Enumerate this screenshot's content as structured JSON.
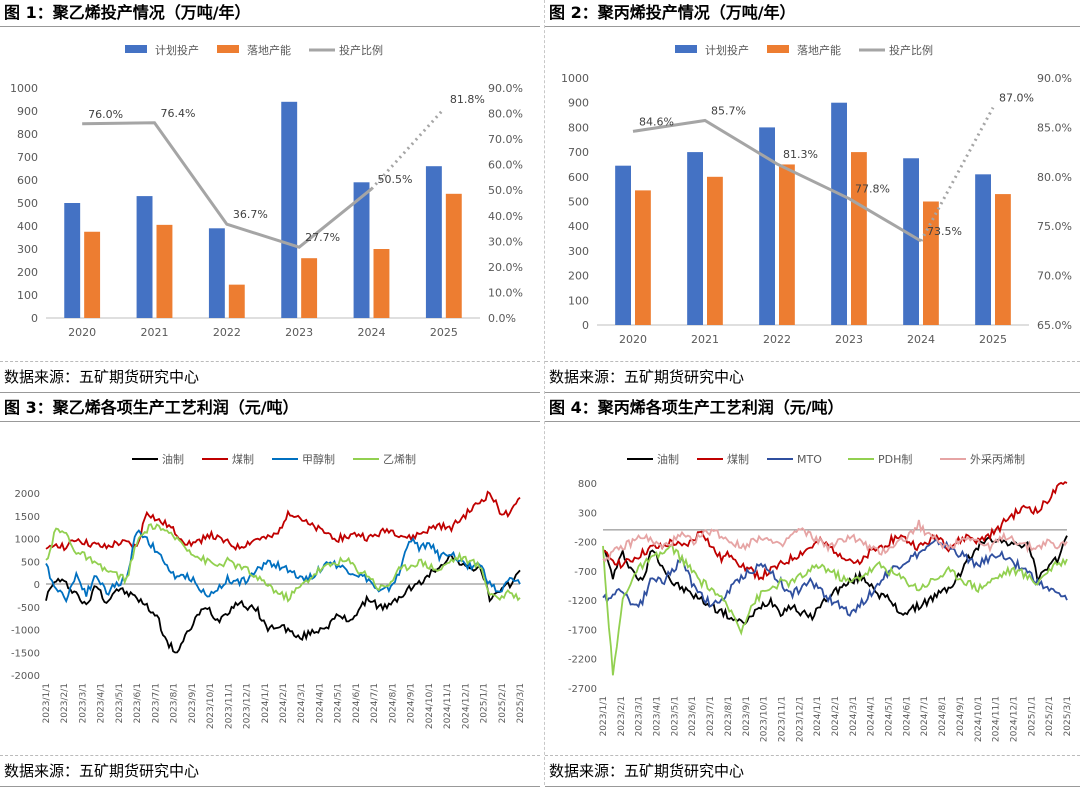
{
  "panels": [
    {
      "title": "图 1：聚乙烯投产情况（万吨/年）",
      "source": "数据来源：五矿期货研究中心"
    },
    {
      "title": "图 2：聚丙烯投产情况（万吨/年）",
      "source": "数据来源：五矿期货研究中心"
    },
    {
      "title": "图 3：聚乙烯各项生产工艺利润（元/吨）",
      "source": "数据来源：五矿期货研究中心"
    },
    {
      "title": "图 4：聚丙烯各项生产工艺利润（元/吨）",
      "source": "数据来源：五矿期货研究中心"
    }
  ],
  "colors": {
    "blue": "#4472C4",
    "orange": "#ED7D31",
    "gray": "#A5A5A5",
    "black": "#000000",
    "red": "#C00000",
    "mblue": "#0070C0",
    "green": "#92D050",
    "dblue": "#2F4F9F",
    "pink": "#E6A4A4"
  },
  "chart_data": [
    {
      "type": "bar",
      "categories": [
        "2020",
        "2021",
        "2022",
        "2023",
        "2024",
        "2025"
      ],
      "series": [
        {
          "name": "计划投产",
          "values": [
            500,
            530,
            390,
            940,
            590,
            660
          ]
        },
        {
          "name": "落地产能",
          "values": [
            375,
            405,
            145,
            260,
            300,
            540
          ]
        }
      ],
      "line": {
        "name": "投产比例",
        "values": [
          76.0,
          76.4,
          36.7,
          27.7,
          50.5,
          81.8
        ],
        "labels": [
          "76.0%",
          "76.4%",
          "36.7%",
          "27.7%",
          "50.5%",
          "81.8%"
        ],
        "dotted_from_index": 4
      },
      "ylim": [
        0,
        1000
      ],
      "yticks": [
        "0",
        "100",
        "200",
        "300",
        "400",
        "500",
        "600",
        "700",
        "800",
        "900",
        "1000"
      ],
      "y2lim": [
        0,
        90
      ],
      "y2ticks": [
        "0.0%",
        "10.0%",
        "20.0%",
        "30.0%",
        "40.0%",
        "50.0%",
        "60.0%",
        "70.0%",
        "80.0%",
        "90.0%"
      ],
      "legend": "top"
    },
    {
      "type": "bar",
      "categories": [
        "2020",
        "2021",
        "2022",
        "2023",
        "2024",
        "2025"
      ],
      "series": [
        {
          "name": "计划投产",
          "values": [
            645,
            700,
            800,
            900,
            675,
            610
          ]
        },
        {
          "name": "落地产能",
          "values": [
            545,
            600,
            650,
            700,
            500,
            530
          ]
        }
      ],
      "line": {
        "name": "投产比例",
        "values": [
          84.6,
          85.7,
          81.3,
          77.8,
          73.5,
          87.0
        ],
        "labels": [
          "84.6%",
          "85.7%",
          "81.3%",
          "77.8%",
          "73.5%",
          "87.0%"
        ],
        "dotted_from_index": 4
      },
      "ylim": [
        0,
        1000
      ],
      "yticks": [
        "0",
        "100",
        "200",
        "300",
        "400",
        "500",
        "600",
        "700",
        "800",
        "900",
        "1000"
      ],
      "y2lim": [
        65,
        90
      ],
      "y2ticks": [
        "65.0%",
        "70.0%",
        "75.0%",
        "80.0%",
        "85.0%",
        "90.0%"
      ],
      "legend": "top"
    },
    {
      "type": "line",
      "xticks": [
        "2023/1/1",
        "2023/2/1",
        "2023/3/1",
        "2023/4/1",
        "2023/5/1",
        "2023/6/1",
        "2023/7/1",
        "2023/8/1",
        "2023/9/1",
        "2023/10/1",
        "2023/11/1",
        "2023/12/1",
        "2024/1/1",
        "2024/2/1",
        "2024/3/1",
        "2024/4/1",
        "2024/5/1",
        "2024/6/1",
        "2024/7/1",
        "2024/8/1",
        "2024/9/1",
        "2024/10/1",
        "2024/11/1",
        "2024/12/1",
        "2025/1/1",
        "2025/2/1",
        "2025/3/1"
      ],
      "ylim": [
        -2000,
        2000
      ],
      "yticks": [
        "-2000",
        "-1500",
        "-1000",
        "-500",
        "0",
        "500",
        "1000",
        "1500",
        "2000"
      ],
      "series": [
        {
          "name": "油制",
          "values": [
            -300,
            100,
            0,
            -200,
            -500,
            0,
            -400,
            -100,
            -200,
            -300,
            -500,
            -700,
            -1300,
            -1500,
            -1100,
            -700,
            -500,
            -800,
            -600,
            -400,
            -500,
            -600,
            -1000,
            -900,
            -1000,
            -1200,
            -1100,
            -1000,
            -900,
            -700,
            -800,
            -600,
            -300,
            -500,
            -500,
            -300,
            -100,
            0,
            200,
            400,
            600,
            500,
            300,
            400,
            -300,
            -200,
            0,
            300
          ]
        },
        {
          "name": "煤制",
          "values": [
            700,
            900,
            800,
            1000,
            900,
            850,
            800,
            900,
            900,
            800,
            1600,
            1400,
            1300,
            1100,
            900,
            900,
            1100,
            1000,
            900,
            800,
            900,
            1000,
            1000,
            1100,
            1600,
            1500,
            1300,
            1200,
            1100,
            1000,
            1050,
            1100,
            1000,
            1100,
            1200,
            1100,
            1000,
            1100,
            1200,
            1300,
            1200,
            1400,
            1600,
            1800,
            2000,
            1600,
            1500,
            1900
          ]
        },
        {
          "name": "甲醇制",
          "values": [
            400,
            -100,
            -300,
            200,
            -200,
            200,
            -200,
            0,
            100,
            1200,
            1000,
            700,
            400,
            100,
            200,
            0,
            -300,
            -100,
            100,
            50,
            100,
            300,
            500,
            400,
            300,
            200,
            100,
            300,
            500,
            400,
            300,
            200,
            100,
            -200,
            -100,
            200,
            1000,
            800,
            900,
            600,
            700,
            500,
            400,
            450,
            0,
            -200,
            100,
            0
          ]
        },
        {
          "name": "乙烯制",
          "values": [
            500,
            1200,
            1100,
            700,
            600,
            400,
            300,
            200,
            100,
            900,
            1200,
            1300,
            1100,
            1000,
            800,
            600,
            500,
            400,
            500,
            400,
            300,
            100,
            0,
            -200,
            -300,
            -100,
            100,
            300,
            400,
            500,
            500,
            300,
            200,
            -100,
            0,
            300,
            400,
            500,
            400,
            300,
            500,
            600,
            500,
            400,
            -200,
            -300,
            -200,
            -300
          ]
        }
      ],
      "legend": "top"
    },
    {
      "type": "line",
      "xticks": [
        "2023/1/1",
        "2023/2/1",
        "2023/3/1",
        "2023/4/1",
        "2023/5/1",
        "2023/6/1",
        "2023/7/1",
        "2023/8/1",
        "2023/9/1",
        "2023/10/1",
        "2023/11/1",
        "2023/12/1",
        "2024/1/1",
        "2024/2/1",
        "2024/3/1",
        "2024/4/1",
        "2024/5/1",
        "2024/6/1",
        "2024/7/1",
        "2024/8/1",
        "2024/9/1",
        "2024/10/1",
        "2024/11/1",
        "2024/12/1",
        "2025/1/1",
        "2025/2/1",
        "2025/3/1"
      ],
      "ylim": [
        -2700,
        800
      ],
      "yticks": [
        "800",
        "300",
        "-200",
        "-700",
        "-1200",
        "-1700",
        "-2200",
        "-2700"
      ],
      "series": [
        {
          "name": "油制",
          "values": [
            -300,
            -800,
            -400,
            -700,
            -900,
            -300,
            -600,
            -900,
            -1000,
            -1100,
            -1200,
            -1300,
            -1400,
            -1500,
            -1600,
            -1500,
            -1300,
            -1200,
            -1400,
            -1300,
            -1400,
            -1500,
            -1300,
            -1100,
            -1000,
            -900,
            -800,
            -900,
            -1100,
            -1200,
            -1400,
            -1400,
            -1300,
            -1200,
            -1100,
            -1000,
            -800,
            -500,
            -300,
            -100,
            -200,
            -200,
            -300,
            -200,
            -800,
            -700,
            -500,
            -100
          ]
        },
        {
          "name": "煤制",
          "values": [
            -400,
            -500,
            -600,
            -500,
            -400,
            -300,
            -300,
            -200,
            -300,
            -200,
            0,
            -300,
            -500,
            -400,
            -600,
            -700,
            -800,
            -700,
            -600,
            -500,
            -400,
            -300,
            -200,
            -300,
            -400,
            -500,
            -600,
            -400,
            -300,
            -200,
            -100,
            -200,
            -300,
            -200,
            -100,
            -300,
            -200,
            -100,
            -200,
            -100,
            0,
            200,
            300,
            400,
            300,
            500,
            700,
            800
          ]
        },
        {
          "name": "MTO",
          "values": [
            -1200,
            -1100,
            -1000,
            -1300,
            -1200,
            -800,
            -900,
            -700,
            -500,
            -900,
            -1100,
            -1300,
            -1200,
            -1000,
            -800,
            -700,
            -600,
            -700,
            -900,
            -1100,
            -1000,
            -900,
            -1000,
            -1200,
            -1300,
            -1400,
            -1300,
            -1100,
            -900,
            -700,
            -600,
            -500,
            -400,
            -300,
            -200,
            -300,
            -400,
            -500,
            -600,
            -500,
            -400,
            -500,
            -600,
            -700,
            -900,
            -1000,
            -1100,
            -1200
          ]
        },
        {
          "name": "PDH制",
          "values": [
            -300,
            -2500,
            -1200,
            -800,
            -600,
            -500,
            -400,
            -300,
            -500,
            -700,
            -900,
            -1000,
            -1200,
            -1400,
            -1700,
            -1300,
            -1100,
            -1000,
            -900,
            -900,
            -800,
            -700,
            -600,
            -700,
            -800,
            -900,
            -800,
            -700,
            -600,
            -700,
            -800,
            -900,
            -1000,
            -900,
            -800,
            -700,
            -800,
            -900,
            -1000,
            -900,
            -800,
            -700,
            -700,
            -800,
            -900,
            -700,
            -600,
            -500
          ]
        },
        {
          "name": "外采丙烯制",
          "values": [
            -500,
            -400,
            -300,
            -200,
            -100,
            -200,
            -300,
            -200,
            -100,
            -200,
            -100,
            0,
            -100,
            -200,
            -300,
            -200,
            -100,
            -200,
            -300,
            -100,
            0,
            -100,
            -200,
            -300,
            -200,
            -100,
            -200,
            -300,
            -400,
            -300,
            -200,
            -100,
            100,
            -100,
            -200,
            -300,
            -200,
            -100,
            -200,
            -300,
            -200,
            -100,
            -200,
            -300,
            -300,
            -200,
            -300,
            -200
          ]
        }
      ],
      "legend": "top"
    }
  ]
}
